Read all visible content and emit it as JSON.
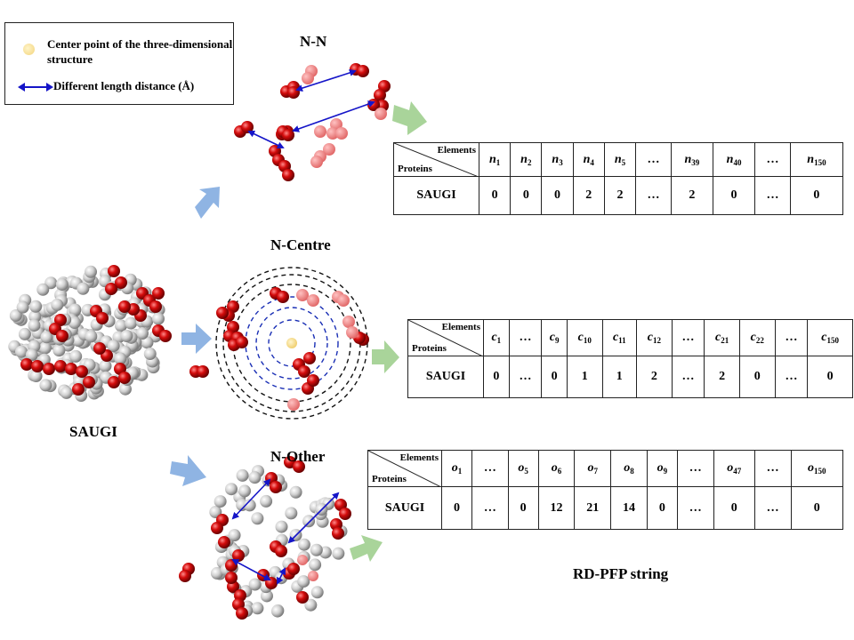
{
  "legend": {
    "center_label": "Center point of the three-dimensional structure",
    "distance_label": "Different length distance (Å)",
    "colors": {
      "center": "#f2d37a",
      "arrow": "#1515c8"
    }
  },
  "labels": {
    "nn": "N-N",
    "ncentre": "N-Centre",
    "nother": "N-Other",
    "protein": "SAUGI",
    "output": "RD-PFP string"
  },
  "tables": {
    "nn": {
      "header_elements": "Elements",
      "header_proteins": "Proteins",
      "columns": [
        [
          "n",
          "1"
        ],
        [
          "n",
          "2"
        ],
        [
          "n",
          "3"
        ],
        [
          "n",
          "4"
        ],
        [
          "n",
          "5"
        ],
        [
          "…",
          ""
        ],
        [
          "n",
          "39"
        ],
        [
          "n",
          "40"
        ],
        [
          "…",
          ""
        ],
        [
          "n",
          "150"
        ]
      ],
      "row_label": "SAUGI",
      "values": [
        "0",
        "0",
        "0",
        "2",
        "2",
        "…",
        "2",
        "0",
        "…",
        "0"
      ]
    },
    "nc": {
      "header_elements": "Elements",
      "header_proteins": "Proteins",
      "columns": [
        [
          "c",
          "1"
        ],
        [
          "…",
          ""
        ],
        [
          "c",
          "9"
        ],
        [
          "c",
          "10"
        ],
        [
          "c",
          "11"
        ],
        [
          "c",
          "12"
        ],
        [
          "…",
          ""
        ],
        [
          "c",
          "21"
        ],
        [
          "c",
          "22"
        ],
        [
          "…",
          ""
        ],
        [
          "c",
          "150"
        ]
      ],
      "row_label": "SAUGI",
      "values": [
        "0",
        "…",
        "0",
        "1",
        "1",
        "2",
        "…",
        "2",
        "0",
        "…",
        "0"
      ]
    },
    "no": {
      "header_elements": "Elements",
      "header_proteins": "Proteins",
      "columns": [
        [
          "o",
          "1"
        ],
        [
          "…",
          ""
        ],
        [
          "o",
          "5"
        ],
        [
          "o",
          "6"
        ],
        [
          "o",
          "7"
        ],
        [
          "o",
          "8"
        ],
        [
          "o",
          "9"
        ],
        [
          "…",
          ""
        ],
        [
          "o",
          "47"
        ],
        [
          "…",
          ""
        ],
        [
          "o",
          "150"
        ]
      ],
      "row_label": "SAUGI",
      "values": [
        "0",
        "…",
        "0",
        "12",
        "21",
        "14",
        "0",
        "…",
        "0",
        "…",
        "0"
      ]
    }
  },
  "colors": {
    "atom_red": "#cc0a0a",
    "atom_gray": "#c8c8c8",
    "arrow_blue": "#8fb4e3",
    "arrow_green": "#a9d49a"
  }
}
